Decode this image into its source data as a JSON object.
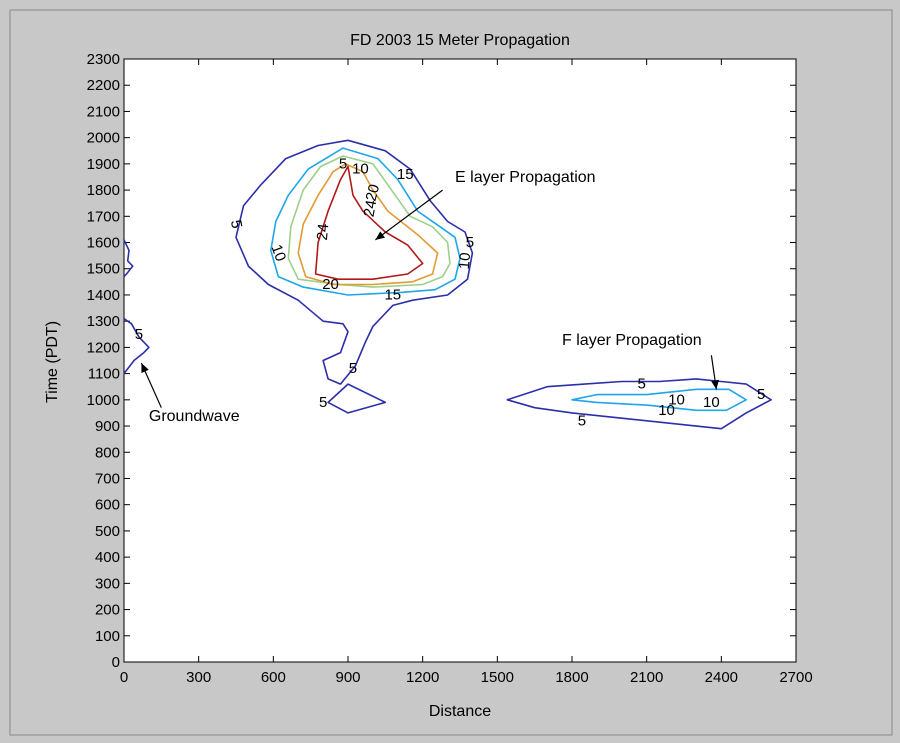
{
  "colors": {
    "figure_bg": "#c8c8c8",
    "axes_bg": "#ffffff",
    "level_5": "#2b2fa8",
    "level_10": "#1ea6e8",
    "level_15": "#9cd08a",
    "level_20": "#e29a33",
    "level_24": "#b11a1a"
  },
  "chart_data": {
    "type": "contour",
    "title": "FD 2003 15 Meter Propagation",
    "xlabel": "Distance",
    "ylabel": "Time (PDT)",
    "xlim": [
      0,
      2700
    ],
    "ylim": [
      0,
      2300
    ],
    "xticks": [
      "0",
      "300",
      "600",
      "900",
      "1200",
      "1500",
      "1800",
      "2100",
      "2400",
      "2700"
    ],
    "yticks": [
      "0",
      "100",
      "200",
      "300",
      "400",
      "500",
      "600",
      "700",
      "800",
      "900",
      "1000",
      "1100",
      "1200",
      "1300",
      "1400",
      "1500",
      "1600",
      "1700",
      "1800",
      "1900",
      "2000",
      "2100",
      "2200",
      "2300"
    ],
    "grid": false,
    "levels": [
      5,
      10,
      15,
      20,
      24
    ],
    "contours": [
      {
        "level": 5,
        "color_key": "level_5",
        "points": [
          [
            900,
            1990
          ],
          [
            1050,
            1950
          ],
          [
            1150,
            1880
          ],
          [
            1230,
            1760
          ],
          [
            1300,
            1680
          ],
          [
            1370,
            1640
          ],
          [
            1400,
            1560
          ],
          [
            1380,
            1460
          ],
          [
            1300,
            1400
          ],
          [
            1160,
            1380
          ],
          [
            1080,
            1360
          ],
          [
            1000,
            1280
          ],
          [
            970,
            1220
          ],
          [
            930,
            1130
          ],
          [
            870,
            1060
          ],
          [
            820,
            1080
          ],
          [
            800,
            1150
          ],
          [
            870,
            1180
          ],
          [
            900,
            1260
          ],
          [
            880,
            1290
          ],
          [
            800,
            1300
          ],
          [
            700,
            1380
          ],
          [
            580,
            1440
          ],
          [
            500,
            1510
          ],
          [
            450,
            1620
          ],
          [
            480,
            1740
          ],
          [
            550,
            1820
          ],
          [
            650,
            1920
          ],
          [
            780,
            1970
          ]
        ]
      },
      {
        "level": 5,
        "color_key": "level_5",
        "points": [
          [
            820,
            990
          ],
          [
            900,
            1060
          ],
          [
            1050,
            990
          ],
          [
            900,
            950
          ]
        ]
      },
      {
        "level": 5,
        "color_key": "level_5",
        "points": [
          [
            1540,
            1000
          ],
          [
            1700,
            1050
          ],
          [
            1850,
            1060
          ],
          [
            2000,
            1070
          ],
          [
            2150,
            1070
          ],
          [
            2300,
            1080
          ],
          [
            2400,
            1070
          ],
          [
            2500,
            1060
          ],
          [
            2600,
            1000
          ],
          [
            2500,
            950
          ],
          [
            2400,
            890
          ],
          [
            2200,
            910
          ],
          [
            2000,
            930
          ],
          [
            1800,
            950
          ],
          [
            1650,
            970
          ]
        ]
      },
      {
        "level": 5,
        "color_key": "level_5",
        "points": [
          [
            0,
            1610
          ],
          [
            20,
            1570
          ],
          [
            15,
            1530
          ],
          [
            35,
            1510
          ],
          [
            10,
            1480
          ],
          [
            0,
            1470
          ]
        ],
        "closed": false
      },
      {
        "level": 5,
        "color_key": "level_5",
        "points": [
          [
            0,
            1310
          ],
          [
            30,
            1290
          ],
          [
            60,
            1240
          ],
          [
            100,
            1200
          ],
          [
            80,
            1180
          ],
          [
            40,
            1150
          ],
          [
            0,
            1100
          ]
        ],
        "closed": false
      },
      {
        "level": 10,
        "color_key": "level_10",
        "points": [
          [
            880,
            1960
          ],
          [
            1020,
            1920
          ],
          [
            1100,
            1840
          ],
          [
            1180,
            1720
          ],
          [
            1270,
            1660
          ],
          [
            1330,
            1620
          ],
          [
            1350,
            1540
          ],
          [
            1330,
            1460
          ],
          [
            1250,
            1420
          ],
          [
            1120,
            1410
          ],
          [
            900,
            1400
          ],
          [
            720,
            1430
          ],
          [
            620,
            1470
          ],
          [
            590,
            1570
          ],
          [
            610,
            1680
          ],
          [
            660,
            1780
          ],
          [
            740,
            1880
          ]
        ]
      },
      {
        "level": 10,
        "color_key": "level_10",
        "points": [
          [
            1800,
            1000
          ],
          [
            1900,
            1020
          ],
          [
            2100,
            1020
          ],
          [
            2300,
            1040
          ],
          [
            2430,
            1040
          ],
          [
            2500,
            1000
          ],
          [
            2420,
            960
          ],
          [
            2300,
            960
          ],
          [
            2100,
            980
          ],
          [
            1900,
            990
          ]
        ]
      },
      {
        "level": 15,
        "color_key": "level_15",
        "points": [
          [
            880,
            1930
          ],
          [
            1000,
            1900
          ],
          [
            1060,
            1820
          ],
          [
            1150,
            1700
          ],
          [
            1240,
            1660
          ],
          [
            1300,
            1600
          ],
          [
            1310,
            1520
          ],
          [
            1280,
            1470
          ],
          [
            1200,
            1440
          ],
          [
            1000,
            1430
          ],
          [
            860,
            1440
          ],
          [
            700,
            1460
          ],
          [
            660,
            1540
          ],
          [
            670,
            1660
          ],
          [
            720,
            1800
          ],
          [
            790,
            1890
          ]
        ]
      },
      {
        "level": 20,
        "color_key": "level_20",
        "points": [
          [
            890,
            1900
          ],
          [
            960,
            1870
          ],
          [
            1000,
            1800
          ],
          [
            1060,
            1720
          ],
          [
            1180,
            1630
          ],
          [
            1260,
            1560
          ],
          [
            1240,
            1480
          ],
          [
            1160,
            1450
          ],
          [
            1000,
            1440
          ],
          [
            840,
            1440
          ],
          [
            730,
            1470
          ],
          [
            700,
            1560
          ],
          [
            720,
            1670
          ],
          [
            780,
            1780
          ],
          [
            840,
            1870
          ]
        ]
      },
      {
        "level": 24,
        "color_key": "level_24",
        "points": [
          [
            900,
            1890
          ],
          [
            920,
            1780
          ],
          [
            960,
            1720
          ],
          [
            1050,
            1640
          ],
          [
            1140,
            1590
          ],
          [
            1200,
            1520
          ],
          [
            1140,
            1480
          ],
          [
            1000,
            1460
          ],
          [
            860,
            1460
          ],
          [
            770,
            1480
          ],
          [
            780,
            1600
          ],
          [
            820,
            1720
          ],
          [
            870,
            1840
          ]
        ]
      }
    ],
    "contour_labels": [
      {
        "text": "5",
        "x": 880,
        "y": 1900,
        "rot": 0
      },
      {
        "text": "10",
        "x": 950,
        "y": 1880,
        "rot": 0
      },
      {
        "text": "5",
        "x": 450,
        "y": 1670,
        "rot": 80
      },
      {
        "text": "10",
        "x": 620,
        "y": 1560,
        "rot": 70
      },
      {
        "text": "24",
        "x": 800,
        "y": 1640,
        "rot": -85
      },
      {
        "text": "20",
        "x": 830,
        "y": 1440,
        "rot": 0
      },
      {
        "text": "15",
        "x": 1080,
        "y": 1400,
        "rot": 0
      },
      {
        "text": "20",
        "x": 1000,
        "y": 1790,
        "rot": -75
      },
      {
        "text": "24",
        "x": 990,
        "y": 1730,
        "rot": -80
      },
      {
        "text": "15",
        "x": 1130,
        "y": 1860,
        "rot": 0
      },
      {
        "text": "10",
        "x": 1370,
        "y": 1530,
        "rot": -85
      },
      {
        "text": "5",
        "x": 1390,
        "y": 1600,
        "rot": 0
      },
      {
        "text": "5",
        "x": 920,
        "y": 1120,
        "rot": 0
      },
      {
        "text": "5",
        "x": 800,
        "y": 990,
        "rot": 0
      },
      {
        "text": "5",
        "x": 60,
        "y": 1250,
        "rot": 0
      },
      {
        "text": "5",
        "x": 2080,
        "y": 1060,
        "rot": 0
      },
      {
        "text": "10",
        "x": 2220,
        "y": 1000,
        "rot": 0
      },
      {
        "text": "10",
        "x": 2180,
        "y": 960,
        "rot": 0
      },
      {
        "text": "10",
        "x": 2360,
        "y": 990,
        "rot": 0
      },
      {
        "text": "5",
        "x": 2560,
        "y": 1020,
        "rot": 0
      },
      {
        "text": "5",
        "x": 1840,
        "y": 920,
        "rot": 0
      }
    ],
    "annotations": [
      {
        "text": "E layer Propagation",
        "tx": 1330,
        "ty": 1830,
        "ax": 1280,
        "ay": 1800,
        "hx": 1010,
        "hy": 1610
      },
      {
        "text": "F layer Propagation",
        "tx": 1760,
        "ty": 1210,
        "ax": 2360,
        "ay": 1170,
        "hx": 2380,
        "hy": 1040
      },
      {
        "text": "Groundwave",
        "tx": 100,
        "ty": 920,
        "ax": 150,
        "ay": 970,
        "hx": 70,
        "hy": 1140
      }
    ]
  }
}
